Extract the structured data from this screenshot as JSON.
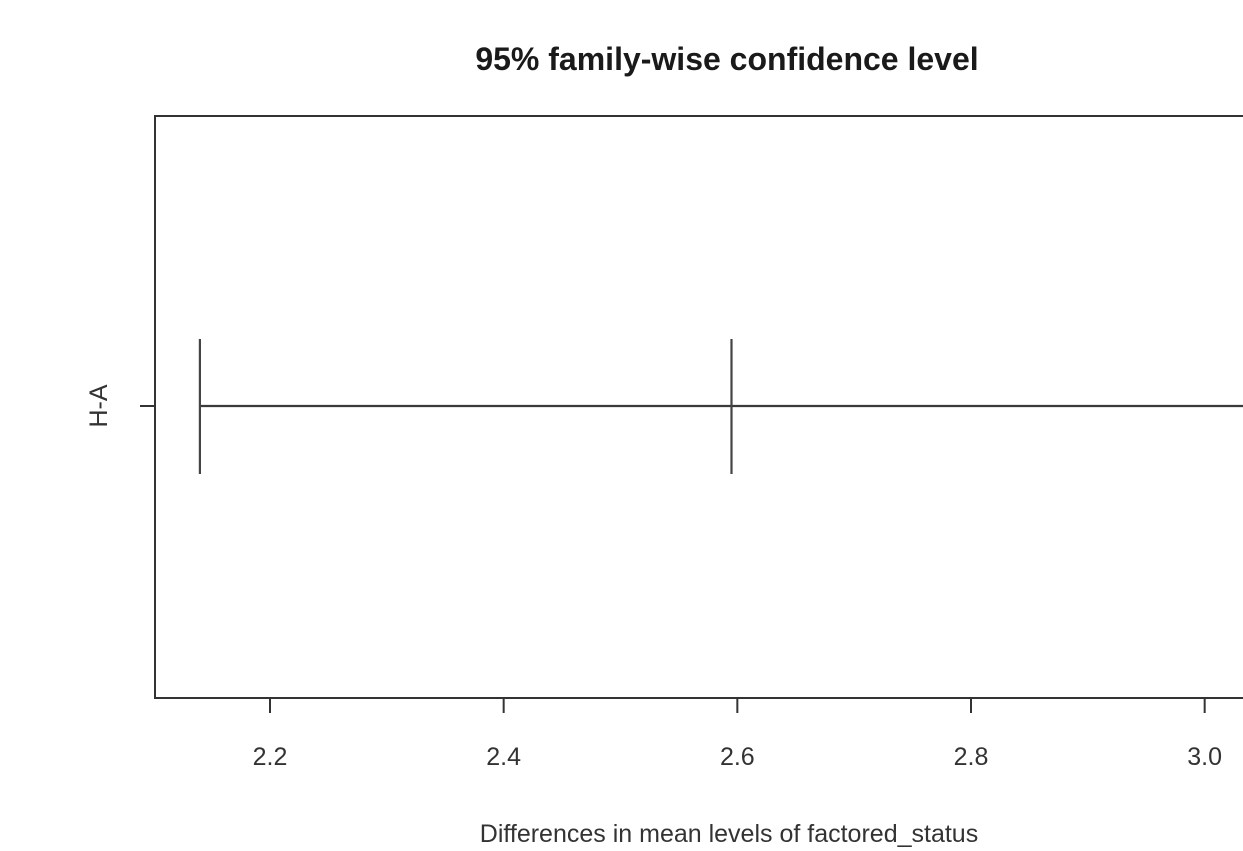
{
  "chart_data": {
    "type": "errorbar",
    "title": "95% family-wise confidence level",
    "xlabel": "Differences in mean levels of factored_status",
    "ylabel": "",
    "categories": [
      "H-A"
    ],
    "series": [
      {
        "category": "H-A",
        "lower": 2.14,
        "estimate": 2.595,
        "upper": 3.08
      }
    ],
    "xlim": [
      2.1,
      3.08
    ],
    "x_ticks": [
      2.2,
      2.4,
      2.6,
      2.8,
      3.0
    ],
    "x_tick_labels": [
      "2.2",
      "2.4",
      "2.6",
      "2.8",
      "3.0"
    ],
    "grid": false,
    "legend": "none"
  }
}
